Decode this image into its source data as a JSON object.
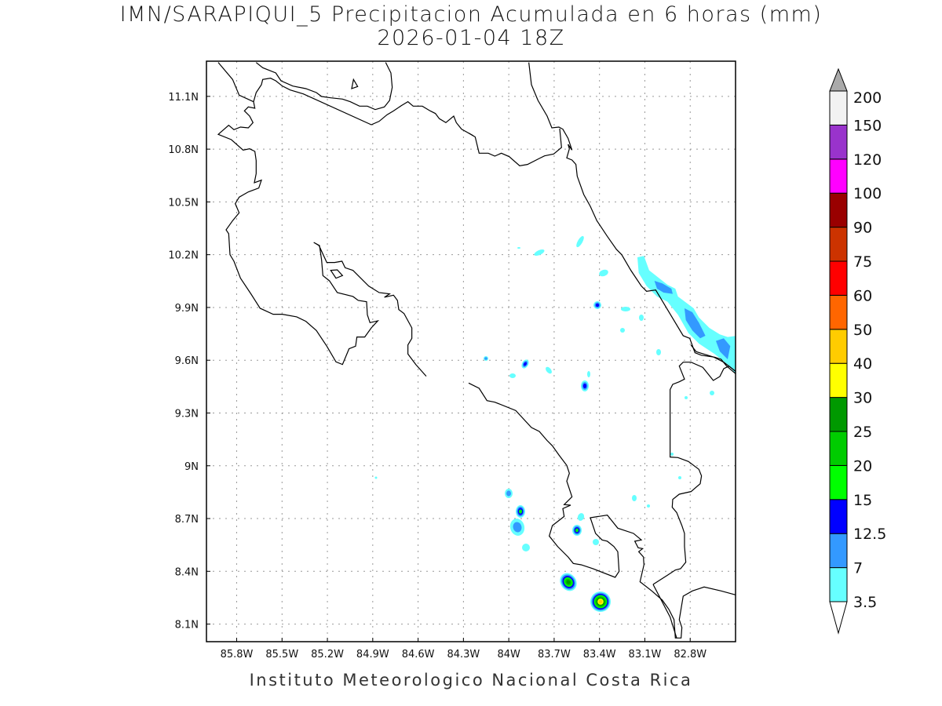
{
  "title": "IMN/SARAPIQUI_5 Precipitacion Acumulada en 6 horas (mm)",
  "subtitle": "2026-01-04 18Z",
  "footer": "Instituto Meteorologico Nacional Costa Rica",
  "map": {
    "lon_range": [
      -86.0,
      -82.5
    ],
    "lat_range": [
      8.0,
      11.3
    ],
    "lon_ticks": [
      {
        "v": -85.8,
        "label": "85.8W"
      },
      {
        "v": -85.5,
        "label": "85.5W"
      },
      {
        "v": -85.2,
        "label": "85.2W"
      },
      {
        "v": -84.9,
        "label": "84.9W"
      },
      {
        "v": -84.6,
        "label": "84.6W"
      },
      {
        "v": -84.3,
        "label": "84.3W"
      },
      {
        "v": -84.0,
        "label": "84W"
      },
      {
        "v": -83.7,
        "label": "83.7W"
      },
      {
        "v": -83.4,
        "label": "83.4W"
      },
      {
        "v": -83.1,
        "label": "83.1W"
      },
      {
        "v": -82.8,
        "label": "82.8W"
      }
    ],
    "lat_ticks": [
      {
        "v": 8.1,
        "label": "8.1N"
      },
      {
        "v": 8.4,
        "label": "8.4N"
      },
      {
        "v": 8.7,
        "label": "8.7N"
      },
      {
        "v": 9.0,
        "label": "9N"
      },
      {
        "v": 9.3,
        "label": "9.3N"
      },
      {
        "v": 9.6,
        "label": "9.6N"
      },
      {
        "v": 9.9,
        "label": "9.9N"
      },
      {
        "v": 10.2,
        "label": "10.2N"
      },
      {
        "v": 10.5,
        "label": "10.5N"
      },
      {
        "v": 10.8,
        "label": "10.8N"
      },
      {
        "v": 11.1,
        "label": "11.1N"
      }
    ]
  },
  "colorbar": {
    "labels": [
      "3.5",
      "7",
      "12.5",
      "15",
      "20",
      "25",
      "30",
      "40",
      "50",
      "60",
      "75",
      "90",
      "100",
      "120",
      "150",
      "200"
    ],
    "colors": [
      "#66ffff",
      "#3399ff",
      "#0000ff",
      "#00ff00",
      "#00cc00",
      "#009900",
      "#ffff00",
      "#ffcc00",
      "#ff6600",
      "#ff0000",
      "#cc3300",
      "#990000",
      "#ff00ff",
      "#9933cc",
      "#f2f2f2"
    ],
    "below_color": "#ffffff",
    "above_color": "#aaaaaa"
  }
}
